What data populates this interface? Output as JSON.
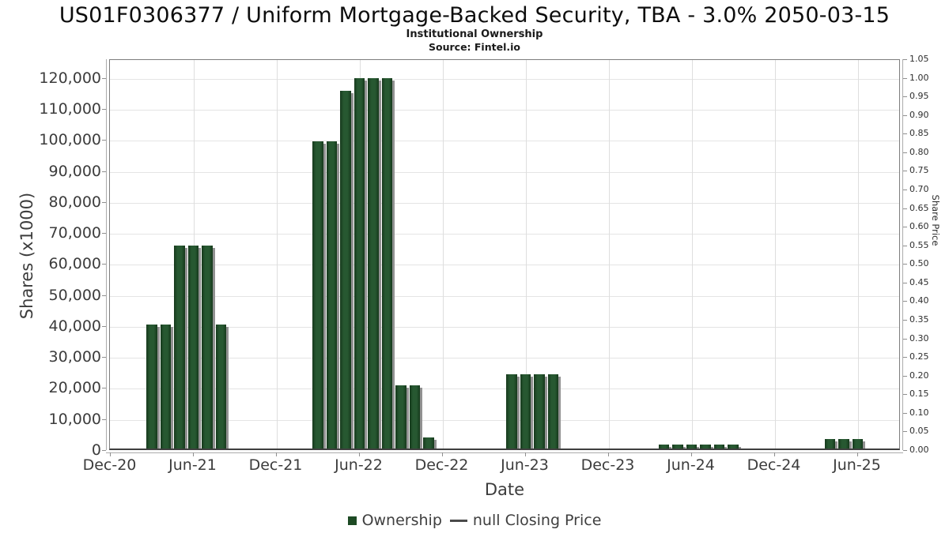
{
  "header": {
    "title": "US01F0306377 / Uniform Mortgage-Backed Security, TBA - 3.0% 2050-03-15",
    "subtitle": "Institutional Ownership",
    "source": "Source: Fintel.io"
  },
  "chart_data": {
    "type": "bar",
    "title": "US01F0306377 / Uniform Mortgage-Backed Security, TBA - 3.0% 2050-03-15",
    "subtitle": "Institutional Ownership",
    "source": "Source: Fintel.io",
    "xlabel": "Date",
    "ylabel_left": "Shares (x1000)",
    "ylabel_right": "Share Price",
    "grid": true,
    "legend_position": "bottom",
    "x_tick_labels": [
      "Dec-20",
      "Jun-21",
      "Dec-21",
      "Jun-22",
      "Dec-22",
      "Jun-23",
      "Dec-23",
      "Jun-24",
      "Dec-24",
      "Jun-25"
    ],
    "y_left_tick_labels": [
      "0",
      "10,000",
      "20,000",
      "30,000",
      "40,000",
      "50,000",
      "60,000",
      "70,000",
      "80,000",
      "90,000",
      "100,000",
      "110,000",
      "120,000"
    ],
    "y_left_tick_values": [
      0,
      10000,
      20000,
      30000,
      40000,
      50000,
      60000,
      70000,
      80000,
      90000,
      100000,
      110000,
      120000
    ],
    "y_right_tick_labels": [
      "0.00",
      "0.05",
      "0.10",
      "0.15",
      "0.20",
      "0.25",
      "0.30",
      "0.35",
      "0.40",
      "0.45",
      "0.50",
      "0.55",
      "0.60",
      "0.65",
      "0.70",
      "0.75",
      "0.80",
      "0.85",
      "0.90",
      "0.95",
      "1.00",
      "1.05"
    ],
    "ylim_left": [
      0,
      126100
    ],
    "ylim_right": [
      0,
      1.05
    ],
    "series": [
      {
        "name": "Ownership",
        "type": "bar",
        "color": "#1e4b26",
        "points": [
          {
            "date": "Mar-21",
            "value": 40000
          },
          {
            "date": "Apr-21",
            "value": 40000
          },
          {
            "date": "May-21",
            "value": 65500
          },
          {
            "date": "Jun-21",
            "value": 65500
          },
          {
            "date": "Jul-21",
            "value": 65500
          },
          {
            "date": "Aug-21",
            "value": 40000
          },
          {
            "date": "Mar-22",
            "value": 99000
          },
          {
            "date": "Apr-22",
            "value": 99000
          },
          {
            "date": "May-22",
            "value": 115500
          },
          {
            "date": "Jun-22",
            "value": 119500
          },
          {
            "date": "Jul-22",
            "value": 119500
          },
          {
            "date": "Aug-22",
            "value": 119500
          },
          {
            "date": "Sep-22",
            "value": 20300
          },
          {
            "date": "Oct-22",
            "value": 20300
          },
          {
            "date": "Nov-22",
            "value": 3600
          },
          {
            "date": "May-23",
            "value": 24000
          },
          {
            "date": "Jun-23",
            "value": 24000
          },
          {
            "date": "Jul-23",
            "value": 24000
          },
          {
            "date": "Aug-23",
            "value": 24000
          },
          {
            "date": "Apr-24",
            "value": 1200
          },
          {
            "date": "May-24",
            "value": 1200
          },
          {
            "date": "Jun-24",
            "value": 1200
          },
          {
            "date": "Jul-24",
            "value": 1200
          },
          {
            "date": "Aug-24",
            "value": 1200
          },
          {
            "date": "Sep-24",
            "value": 1200
          },
          {
            "date": "Apr-25",
            "value": 3000
          },
          {
            "date": "May-25",
            "value": 3000
          },
          {
            "date": "Jun-25",
            "value": 3000
          }
        ]
      },
      {
        "name": "null Closing Price",
        "type": "line",
        "color": "#4a4a4a",
        "points": []
      }
    ]
  }
}
